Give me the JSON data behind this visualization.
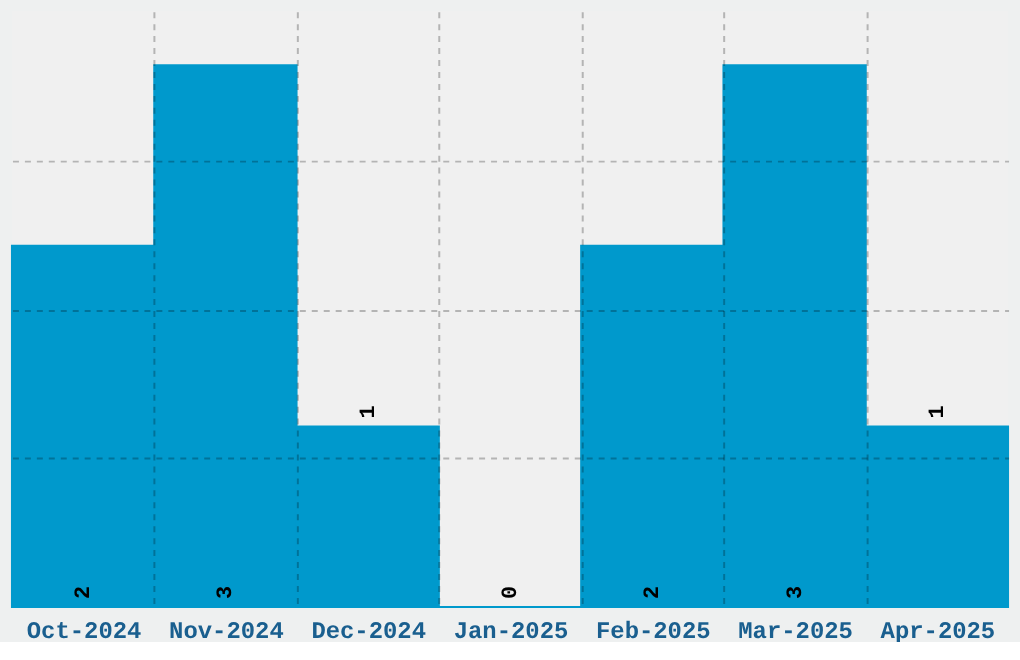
{
  "chart_data": {
    "type": "bar",
    "categories": [
      "Oct-2024",
      "Nov-2024",
      "Dec-2024",
      "Jan-2025",
      "Feb-2025",
      "Mar-2025",
      "Apr-2025"
    ],
    "values": [
      2,
      3,
      1,
      0,
      2,
      3,
      1
    ],
    "color": "#0099cc",
    "data_labels": true,
    "grid": true,
    "tick_labels": "x"
  }
}
